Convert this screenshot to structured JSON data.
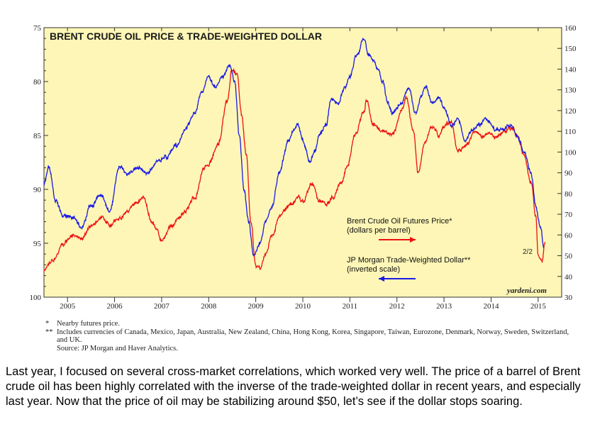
{
  "chart_data": {
    "type": "line",
    "title": "BRENT CRUDE OIL PRICE & TRADE-WEIGHTED DOLLAR",
    "x_ticks": [
      "2005",
      "2006",
      "2007",
      "2008",
      "2009",
      "2010",
      "2011",
      "2012",
      "2013",
      "2014",
      "2015"
    ],
    "xlim": [
      2004.5,
      2015.5
    ],
    "left_axis": {
      "ticks": [
        "75",
        "80",
        "85",
        "90",
        "95",
        "100"
      ],
      "ylim": [
        100,
        75
      ],
      "inverted": true
    },
    "right_axis": {
      "ticks": [
        "30",
        "40",
        "50",
        "60",
        "70",
        "80",
        "90",
        "100",
        "110",
        "120",
        "130",
        "140",
        "150",
        "160"
      ],
      "ylim": [
        30,
        160
      ]
    },
    "grid": false,
    "plot_background": "#fdf6b6",
    "series": [
      {
        "name": "Brent Crude Oil Futures Price*",
        "sub": "(dollars per barrel)",
        "color": "#ee1111",
        "axis": "right",
        "points": [
          [
            2004.5,
            43
          ],
          [
            2004.7,
            48
          ],
          [
            2004.9,
            55
          ],
          [
            2005.1,
            60
          ],
          [
            2005.3,
            58
          ],
          [
            2005.5,
            64
          ],
          [
            2005.7,
            68
          ],
          [
            2005.9,
            65
          ],
          [
            2006.1,
            68
          ],
          [
            2006.3,
            72
          ],
          [
            2006.5,
            76
          ],
          [
            2006.6,
            78
          ],
          [
            2006.8,
            66
          ],
          [
            2006.9,
            63
          ],
          [
            2007.0,
            57
          ],
          [
            2007.2,
            64
          ],
          [
            2007.4,
            69
          ],
          [
            2007.5,
            72
          ],
          [
            2007.7,
            78
          ],
          [
            2007.9,
            92
          ],
          [
            2008.0,
            94
          ],
          [
            2008.2,
            104
          ],
          [
            2008.4,
            125
          ],
          [
            2008.5,
            140
          ],
          [
            2008.6,
            138
          ],
          [
            2008.7,
            118
          ],
          [
            2008.8,
            98
          ],
          [
            2008.9,
            65
          ],
          [
            2009.0,
            45
          ],
          [
            2009.1,
            44
          ],
          [
            2009.2,
            50
          ],
          [
            2009.35,
            60
          ],
          [
            2009.5,
            69
          ],
          [
            2009.6,
            72
          ],
          [
            2009.75,
            75
          ],
          [
            2009.9,
            78
          ],
          [
            2010.0,
            76
          ],
          [
            2010.2,
            85
          ],
          [
            2010.35,
            76
          ],
          [
            2010.5,
            75
          ],
          [
            2010.65,
            78
          ],
          [
            2010.8,
            85
          ],
          [
            2010.95,
            93
          ],
          [
            2011.1,
            108
          ],
          [
            2011.3,
            120
          ],
          [
            2011.35,
            125
          ],
          [
            2011.5,
            113
          ],
          [
            2011.7,
            110
          ],
          [
            2011.9,
            108
          ],
          [
            2012.1,
            120
          ],
          [
            2012.2,
            126
          ],
          [
            2012.35,
            110
          ],
          [
            2012.45,
            90
          ],
          [
            2012.6,
            105
          ],
          [
            2012.75,
            112
          ],
          [
            2012.9,
            108
          ],
          [
            2013.0,
            112
          ],
          [
            2013.15,
            115
          ],
          [
            2013.3,
            100
          ],
          [
            2013.5,
            104
          ],
          [
            2013.65,
            110
          ],
          [
            2013.8,
            108
          ],
          [
            2013.95,
            109
          ],
          [
            2014.1,
            107
          ],
          [
            2014.3,
            110
          ],
          [
            2014.45,
            112
          ],
          [
            2014.55,
            108
          ],
          [
            2014.7,
            99
          ],
          [
            2014.85,
            85
          ],
          [
            2014.95,
            70
          ],
          [
            2015.0,
            50
          ],
          [
            2015.08,
            48
          ],
          [
            2015.15,
            57
          ]
        ]
      },
      {
        "name": "JP Morgan Trade-Weighted Dollar**",
        "sub": "(inverted scale)",
        "color": "#1a1ae6",
        "axis": "left",
        "points": [
          [
            2004.5,
            89.5
          ],
          [
            2004.6,
            88
          ],
          [
            2004.75,
            91
          ],
          [
            2004.9,
            92.5
          ],
          [
            2005.1,
            92.5
          ],
          [
            2005.3,
            93.5
          ],
          [
            2005.5,
            91.5
          ],
          [
            2005.7,
            90.5
          ],
          [
            2005.9,
            92
          ],
          [
            2006.1,
            88
          ],
          [
            2006.3,
            88.5
          ],
          [
            2006.5,
            88
          ],
          [
            2006.7,
            88.5
          ],
          [
            2006.9,
            87.5
          ],
          [
            2007.1,
            87
          ],
          [
            2007.3,
            86
          ],
          [
            2007.5,
            84.5
          ],
          [
            2007.7,
            83
          ],
          [
            2007.85,
            81
          ],
          [
            2008.0,
            79.5
          ],
          [
            2008.15,
            80.5
          ],
          [
            2008.3,
            79.5
          ],
          [
            2008.45,
            78.5
          ],
          [
            2008.55,
            80
          ],
          [
            2008.65,
            85
          ],
          [
            2008.75,
            90
          ],
          [
            2008.85,
            93
          ],
          [
            2008.95,
            96
          ],
          [
            2009.1,
            95
          ],
          [
            2009.2,
            93
          ],
          [
            2009.35,
            91.5
          ],
          [
            2009.5,
            88.5
          ],
          [
            2009.7,
            85.5
          ],
          [
            2009.8,
            84.5
          ],
          [
            2009.9,
            84
          ],
          [
            2010.0,
            85.5
          ],
          [
            2010.15,
            87.5
          ],
          [
            2010.25,
            86.5
          ],
          [
            2010.35,
            85
          ],
          [
            2010.5,
            84
          ],
          [
            2010.6,
            81.5
          ],
          [
            2010.75,
            82
          ],
          [
            2010.9,
            80.5
          ],
          [
            2011.0,
            79.5
          ],
          [
            2011.15,
            77.5
          ],
          [
            2011.3,
            76
          ],
          [
            2011.4,
            77.5
          ],
          [
            2011.5,
            78
          ],
          [
            2011.6,
            79
          ],
          [
            2011.7,
            80
          ],
          [
            2011.8,
            82
          ],
          [
            2011.9,
            83
          ],
          [
            2012.1,
            82
          ],
          [
            2012.25,
            80.5
          ],
          [
            2012.4,
            83
          ],
          [
            2012.5,
            81.5
          ],
          [
            2012.6,
            80.5
          ],
          [
            2012.75,
            82
          ],
          [
            2012.9,
            81.5
          ],
          [
            2013.0,
            82.5
          ],
          [
            2013.15,
            84
          ],
          [
            2013.3,
            83.5
          ],
          [
            2013.45,
            85.5
          ],
          [
            2013.6,
            84.5
          ],
          [
            2013.75,
            84
          ],
          [
            2013.9,
            83.5
          ],
          [
            2014.1,
            84.5
          ],
          [
            2014.25,
            84.5
          ],
          [
            2014.4,
            84
          ],
          [
            2014.55,
            85
          ],
          [
            2014.7,
            86.5
          ],
          [
            2014.85,
            88.5
          ],
          [
            2014.95,
            91.5
          ],
          [
            2015.05,
            93.5
          ],
          [
            2015.12,
            95.5
          ]
        ]
      }
    ],
    "annotation": "2/2",
    "credit": "yardeni.com"
  },
  "notes": [
    {
      "mark": "*",
      "text": "Nearby futures price."
    },
    {
      "mark": "**",
      "text": "Includes currencies of Canada, Mexico, Japan, Australia, New Zealand, China, Hong Kong, Korea, Singapore, Taiwan, Eurozone, Denmark, Norway, Sweden, Switzerland, and UK."
    },
    {
      "mark": "",
      "text": "Source: JP Morgan and Haver Analytics."
    }
  ],
  "caption": "Last year, I focused on several cross-market correlations, which worked very well. The price of a barrel of Brent crude oil has been highly correlated with the inverse of the trade-weighted dollar in recent years, and especially last year. Now that the price of oil may be stabilizing around $50, let’s see if the dollar stops soaring."
}
